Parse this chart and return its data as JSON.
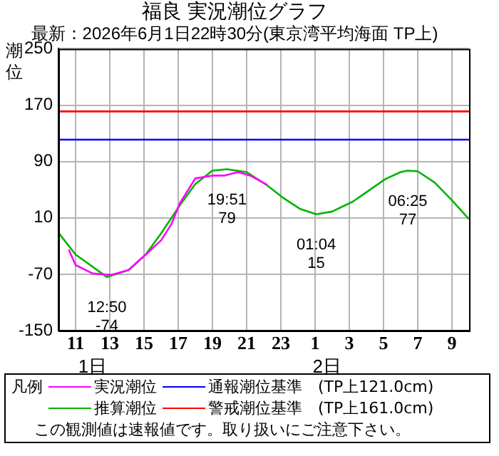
{
  "chart_data": {
    "type": "line",
    "title": "福良 実況潮位グラフ",
    "subtitle": "最新：2026年6月1日22時30分(東京湾平均海面 TP上)",
    "ylabel": "潮位",
    "legend_title": "凡例",
    "legend": "bottom",
    "grid": true,
    "marker": "none",
    "line_style": "solid",
    "xlim": [
      "2026-06-01T10:00",
      "2026-06-02T10:00"
    ],
    "ylim": [
      -150,
      250
    ],
    "xticks": [
      {
        "value": "2026-06-01T11:00",
        "label": "11"
      },
      {
        "value": "2026-06-01T13:00",
        "label": "13"
      },
      {
        "value": "2026-06-01T15:00",
        "label": "15"
      },
      {
        "value": "2026-06-01T17:00",
        "label": "17"
      },
      {
        "value": "2026-06-01T19:00",
        "label": "19"
      },
      {
        "value": "2026-06-01T21:00",
        "label": "21"
      },
      {
        "value": "2026-06-01T23:00",
        "label": "23"
      },
      {
        "value": "2026-06-02T01:00",
        "label": "1"
      },
      {
        "value": "2026-06-02T03:00",
        "label": "3"
      },
      {
        "value": "2026-06-02T05:00",
        "label": "5"
      },
      {
        "value": "2026-06-02T07:00",
        "label": "7"
      },
      {
        "value": "2026-06-02T09:00",
        "label": "9"
      }
    ],
    "x2lim": [
      "2026-06-01T10:00",
      "2026-06-02T10:00"
    ],
    "x2ticks": [
      {
        "value": "2026-06-01T12:00",
        "label": "1日"
      },
      {
        "value": "2026-06-02T01:42",
        "label": "2日"
      }
    ],
    "yticks": [
      -150,
      -70,
      10,
      90,
      170,
      250
    ],
    "series": [
      {
        "name": "実況潮位",
        "color": "#ff00ff",
        "x": [
          "2026-06-01T10:36",
          "2026-06-01T11:00",
          "2026-06-01T12:00",
          "2026-06-01T13:06",
          "2026-06-01T14:06",
          "2026-06-01T15:06",
          "2026-06-01T16:00",
          "2026-06-01T16:36",
          "2026-06-01T17:06",
          "2026-06-01T18:00",
          "2026-06-01T19:00",
          "2026-06-01T19:42",
          "2026-06-01T20:30",
          "2026-06-01T21:12",
          "2026-06-01T22:12"
        ],
        "values": [
          -35,
          -57,
          -69,
          -71,
          -64,
          -42,
          -22,
          1,
          31,
          66,
          70,
          70,
          75,
          70,
          57
        ]
      },
      {
        "name": "推算潮位",
        "color": "#00b400",
        "x": [
          "2026-06-01T10:00",
          "2026-06-01T11:00",
          "2026-06-01T12:50",
          "2026-06-01T14:06",
          "2026-06-01T15:06",
          "2026-06-01T16:00",
          "2026-06-01T17:06",
          "2026-06-01T18:00",
          "2026-06-01T19:00",
          "2026-06-01T19:51",
          "2026-06-01T21:00",
          "2026-06-01T22:12",
          "2026-06-01T23:06",
          "2026-06-02T00:06",
          "2026-06-02T01:04",
          "2026-06-02T02:00",
          "2026-06-02T03:12",
          "2026-06-02T04:06",
          "2026-06-02T05:06",
          "2026-06-02T06:00",
          "2026-06-02T06:25",
          "2026-06-02T07:00",
          "2026-06-02T08:00",
          "2026-06-02T09:00",
          "2026-06-02T10:00"
        ],
        "values": [
          -11,
          -42,
          -74,
          -64,
          -42,
          -12,
          28,
          58,
          77,
          79,
          75,
          56,
          39,
          23,
          15,
          19,
          33,
          48,
          65,
          75,
          77,
          76,
          60,
          35,
          8
        ]
      }
    ],
    "ref_lines": [
      {
        "axis": "y",
        "value": 121,
        "label": "通報潮位基準　(TP上121.0cm)",
        "color": "#0000ff"
      },
      {
        "axis": "y",
        "value": 161,
        "label": "警戒潮位基準　(TP上161.0cm)",
        "color": "#ff0000"
      }
    ],
    "annotations": [
      {
        "text": "12:50\n-74",
        "x": "2026-06-01T12:50",
        "y": -74
      },
      {
        "text": "19:51\n79",
        "x": "2026-06-01T19:51",
        "y": 79
      },
      {
        "text": "01:04\n15",
        "x": "2026-06-02T01:04",
        "y": 15
      },
      {
        "text": "06:25\n77",
        "x": "2026-06-02T06:25",
        "y": 77
      },
      "この観測値は速報値です。取り扱いにご注意下さい。"
    ]
  }
}
